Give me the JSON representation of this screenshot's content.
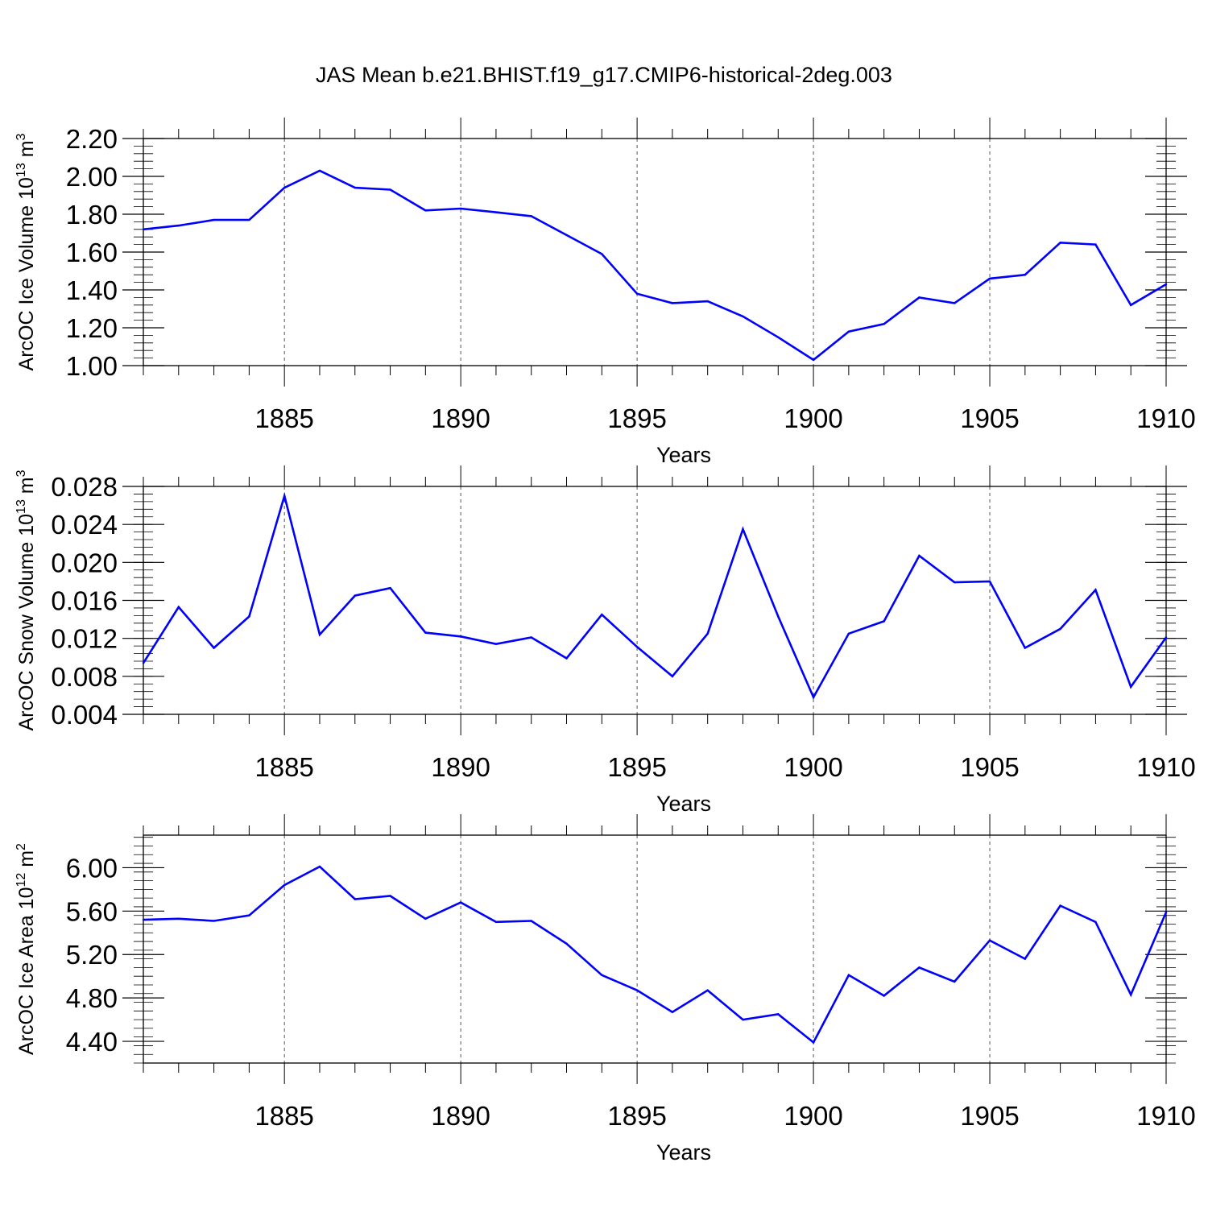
{
  "title": "JAS Mean b.e21.BHIST.f19_g17.CMIP6-historical-2deg.003",
  "colors": {
    "series": "#0000ff",
    "axis": "#000000",
    "grid": "#555555"
  },
  "chart_data": [
    {
      "type": "line",
      "ylabel": {
        "text": "ArcOC Ice Volume 10",
        "sup": "13",
        "unit": " m",
        "unit_sup": "3"
      },
      "xlabel": "Years",
      "xlim": [
        1881,
        1910
      ],
      "ylim": [
        1.0,
        2.2
      ],
      "y_ticks": [
        1.0,
        1.2,
        1.4,
        1.6,
        1.8,
        2.0,
        2.2
      ],
      "y_tick_labels": [
        "1.00",
        "1.20",
        "1.40",
        "1.60",
        "1.80",
        "2.00",
        "2.20"
      ],
      "y_minor_step": 0.04,
      "x_ticks": [
        1885,
        1890,
        1895,
        1900,
        1905,
        1910
      ],
      "x_tick_labels": [
        "1885",
        "1890",
        "1895",
        "1900",
        "1905",
        "1910"
      ],
      "grid": "vertical dashed at major x ticks",
      "x": [
        1881,
        1882,
        1883,
        1884,
        1885,
        1886,
        1887,
        1888,
        1889,
        1890,
        1891,
        1892,
        1893,
        1894,
        1895,
        1896,
        1897,
        1898,
        1899,
        1900,
        1901,
        1902,
        1903,
        1904,
        1905,
        1906,
        1907,
        1908,
        1909,
        1910
      ],
      "values": [
        1.72,
        1.74,
        1.77,
        1.77,
        1.94,
        2.03,
        1.94,
        1.93,
        1.82,
        1.83,
        1.81,
        1.79,
        1.69,
        1.59,
        1.38,
        1.33,
        1.34,
        1.26,
        1.15,
        1.03,
        1.18,
        1.22,
        1.36,
        1.33,
        1.46,
        1.48,
        1.65,
        1.64,
        1.32,
        1.43
      ]
    },
    {
      "type": "line",
      "ylabel": {
        "text": "ArcOC Snow Volume 10",
        "sup": "13",
        "unit": " m",
        "unit_sup": "3"
      },
      "xlabel": "Years",
      "xlim": [
        1881,
        1910
      ],
      "ylim": [
        0.004,
        0.028
      ],
      "y_ticks": [
        0.004,
        0.008,
        0.012,
        0.016,
        0.02,
        0.024,
        0.028
      ],
      "y_tick_labels": [
        "0.004",
        "0.008",
        "0.012",
        "0.016",
        "0.020",
        "0.024",
        "0.028"
      ],
      "y_minor_step": 0.0008,
      "x_ticks": [
        1885,
        1890,
        1895,
        1900,
        1905,
        1910
      ],
      "x_tick_labels": [
        "1885",
        "1890",
        "1895",
        "1900",
        "1905",
        "1910"
      ],
      "grid": "vertical dashed at major x ticks",
      "x": [
        1881,
        1882,
        1883,
        1884,
        1885,
        1886,
        1887,
        1888,
        1889,
        1890,
        1891,
        1892,
        1893,
        1894,
        1895,
        1896,
        1897,
        1898,
        1899,
        1900,
        1901,
        1902,
        1903,
        1904,
        1905,
        1906,
        1907,
        1908,
        1909,
        1910
      ],
      "values": [
        0.0094,
        0.0153,
        0.011,
        0.0143,
        0.027,
        0.0124,
        0.0165,
        0.0173,
        0.0126,
        0.0122,
        0.0114,
        0.0121,
        0.0099,
        0.0145,
        0.0111,
        0.008,
        0.0125,
        0.0235,
        0.0143,
        0.0058,
        0.0125,
        0.0138,
        0.0207,
        0.0179,
        0.018,
        0.011,
        0.013,
        0.0171,
        0.0069,
        0.0121
      ]
    },
    {
      "type": "line",
      "ylabel": {
        "text": "ArcOC Ice Area 10",
        "sup": "12",
        "unit": " m",
        "unit_sup": "2"
      },
      "xlabel": "Years",
      "xlim": [
        1881,
        1910
      ],
      "ylim": [
        4.2,
        6.3
      ],
      "y_ticks": [
        4.4,
        4.8,
        5.2,
        5.6,
        6.0
      ],
      "y_tick_labels": [
        "4.40",
        "4.80",
        "5.20",
        "5.60",
        "6.00"
      ],
      "y_minor_step": 0.08,
      "x_ticks": [
        1885,
        1890,
        1895,
        1900,
        1905,
        1910
      ],
      "x_tick_labels": [
        "1885",
        "1890",
        "1895",
        "1900",
        "1905",
        "1910"
      ],
      "grid": "vertical dashed at major x ticks",
      "x": [
        1881,
        1882,
        1883,
        1884,
        1885,
        1886,
        1887,
        1888,
        1889,
        1890,
        1891,
        1892,
        1893,
        1894,
        1895,
        1896,
        1897,
        1898,
        1899,
        1900,
        1901,
        1902,
        1903,
        1904,
        1905,
        1906,
        1907,
        1908,
        1909,
        1910
      ],
      "values": [
        5.52,
        5.53,
        5.51,
        5.56,
        5.84,
        6.01,
        5.71,
        5.74,
        5.53,
        5.68,
        5.5,
        5.51,
        5.3,
        5.01,
        4.87,
        4.67,
        4.87,
        4.6,
        4.65,
        4.39,
        5.01,
        4.82,
        5.08,
        4.95,
        5.33,
        5.16,
        5.65,
        5.5,
        4.83,
        5.59
      ]
    }
  ]
}
